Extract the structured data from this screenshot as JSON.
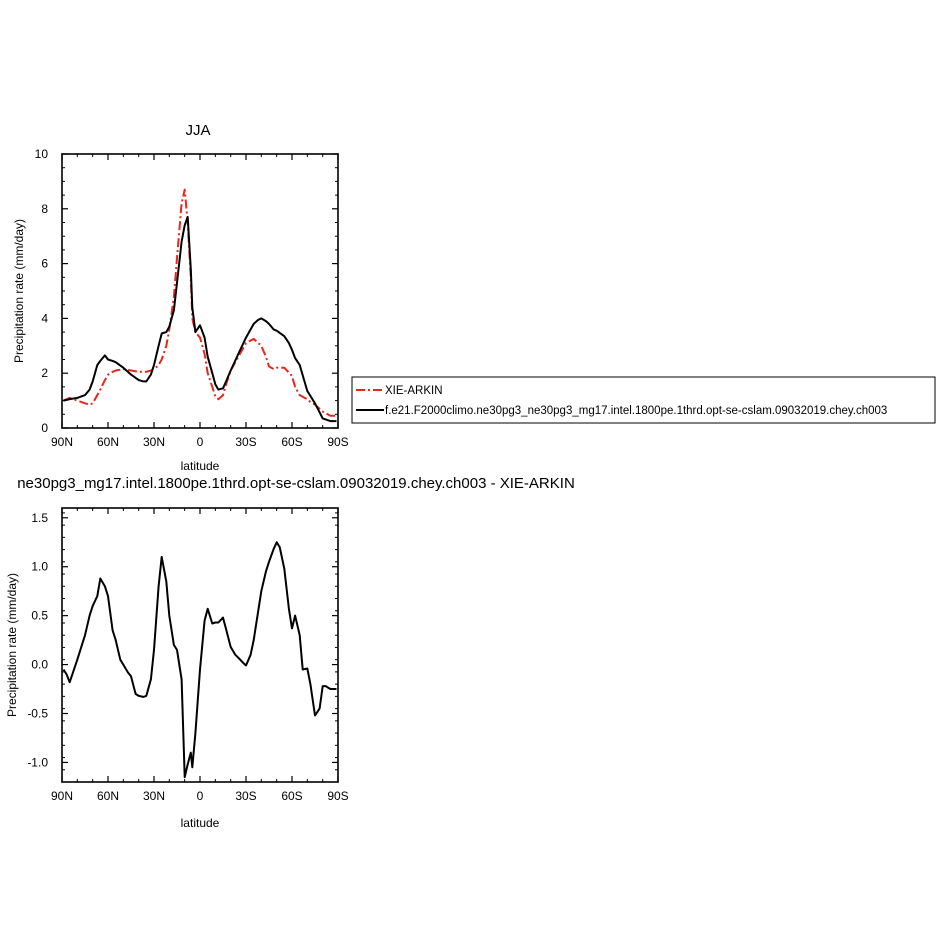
{
  "chart_data": [
    {
      "type": "line",
      "title": "JJA",
      "xlabel": "latitude",
      "ylabel": "Precipitation rate (mm/day)",
      "xlim": [
        90,
        -90
      ],
      "ylim": [
        0,
        10
      ],
      "x_ticks": [
        90,
        60,
        30,
        0,
        -30,
        -60,
        -90
      ],
      "x_tick_labels": [
        "90N",
        "60N",
        "30N",
        "0",
        "30S",
        "60S",
        "90S"
      ],
      "y_ticks": [
        0,
        2,
        4,
        6,
        8,
        10
      ],
      "y_tick_labels": [
        "0",
        "2",
        "4",
        "6",
        "8",
        "10"
      ],
      "legend_position": "right",
      "series": [
        {
          "name": "XIE-ARKIN",
          "color": "#e8271b",
          "dash": "dash-dot",
          "x": [
            89,
            85,
            80,
            75,
            72,
            70,
            65,
            62,
            60,
            57,
            55,
            50,
            45,
            40,
            35,
            32,
            30,
            27,
            25,
            22,
            20,
            17,
            15,
            12,
            10,
            8,
            6,
            5,
            3,
            0,
            -3,
            -5,
            -8,
            -10,
            -12,
            -15,
            -17,
            -20,
            -25,
            -30,
            -35,
            -40,
            -43,
            -45,
            -48,
            -50,
            -55,
            -60,
            -62,
            -65,
            -70,
            -72,
            -75,
            -80,
            -85,
            -89
          ],
          "y": [
            1.0,
            1.1,
            1.0,
            0.9,
            0.85,
            0.9,
            1.4,
            1.75,
            1.95,
            2.05,
            2.1,
            2.15,
            2.1,
            2.05,
            2.05,
            2.1,
            2.15,
            2.3,
            2.5,
            3.0,
            3.6,
            4.8,
            6.2,
            8.2,
            8.7,
            7.5,
            5.5,
            4.0,
            3.5,
            3.3,
            2.7,
            2.0,
            1.5,
            1.15,
            1.05,
            1.2,
            1.6,
            2.1,
            2.6,
            3.1,
            3.25,
            3.0,
            2.6,
            2.25,
            2.15,
            2.2,
            2.2,
            1.9,
            1.5,
            1.2,
            1.05,
            0.95,
            0.85,
            0.6,
            0.45,
            0.45
          ]
        },
        {
          "name": "f.e21.F2000climo.ne30pg3_ne30pg3_mg17.intel.1800pe.1thrd.opt-se-cslam.09032019.chey.ch003",
          "color": "#000000",
          "dash": "solid",
          "x": [
            89,
            85,
            80,
            75,
            72,
            70,
            67,
            65,
            62,
            60,
            57,
            55,
            50,
            45,
            40,
            37,
            35,
            32,
            30,
            27,
            25,
            22,
            20,
            17,
            15,
            12,
            10,
            8,
            6,
            5,
            3,
            0,
            -3,
            -5,
            -8,
            -10,
            -12,
            -15,
            -17,
            -20,
            -25,
            -30,
            -35,
            -38,
            -40,
            -43,
            -45,
            -48,
            -50,
            -55,
            -58,
            -60,
            -62,
            -65,
            -70,
            -75,
            -80,
            -85,
            -89
          ],
          "y": [
            1.0,
            1.05,
            1.1,
            1.2,
            1.4,
            1.7,
            2.3,
            2.45,
            2.65,
            2.5,
            2.45,
            2.4,
            2.2,
            1.95,
            1.75,
            1.7,
            1.7,
            1.95,
            2.3,
            3.0,
            3.45,
            3.5,
            3.7,
            4.3,
            5.3,
            6.8,
            7.4,
            7.7,
            5.8,
            4.4,
            3.5,
            3.75,
            3.3,
            2.6,
            2.0,
            1.6,
            1.4,
            1.45,
            1.7,
            2.1,
            2.7,
            3.3,
            3.8,
            3.95,
            4.0,
            3.9,
            3.8,
            3.6,
            3.55,
            3.35,
            3.1,
            2.85,
            2.55,
            2.3,
            1.35,
            0.9,
            0.35,
            0.25,
            0.25
          ]
        }
      ]
    },
    {
      "type": "line",
      "title": "ne30pg3_mg17.intel.1800pe.1thrd.opt-se-cslam.09032019.chey.ch003 - XIE-ARKIN",
      "xlabel": "latitude",
      "ylabel": "Precipitation rate (mm/day)",
      "xlim": [
        90,
        -90
      ],
      "ylim": [
        -1.2,
        1.6
      ],
      "x_ticks": [
        90,
        60,
        30,
        0,
        -30,
        -60,
        -90
      ],
      "x_tick_labels": [
        "90N",
        "60N",
        "30N",
        "0",
        "30S",
        "60S",
        "90S"
      ],
      "y_ticks": [
        -1.0,
        -0.5,
        0.0,
        0.5,
        1.0,
        1.5
      ],
      "y_tick_labels": [
        "-1.0",
        "-0.5",
        "0.0",
        "0.5",
        "1.0",
        "1.5"
      ],
      "series": [
        {
          "name": "",
          "color": "#000000",
          "dash": "solid",
          "x": [
            89,
            87,
            85,
            80,
            75,
            72,
            70,
            67,
            65,
            62,
            60,
            57,
            55,
            52,
            50,
            47,
            45,
            42,
            40,
            37,
            35,
            32,
            30,
            27,
            25,
            22,
            20,
            17,
            15,
            12,
            10,
            8,
            6,
            5,
            3,
            0,
            -3,
            -5,
            -8,
            -10,
            -12,
            -15,
            -17,
            -20,
            -23,
            -25,
            -28,
            -30,
            -33,
            -35,
            -40,
            -43,
            -45,
            -48,
            -50,
            -52,
            -55,
            -58,
            -60,
            -62,
            -65,
            -67,
            -70,
            -72,
            -75,
            -78,
            -80,
            -82,
            -85,
            -89
          ],
          "y": [
            -0.05,
            -0.1,
            -0.18,
            0.05,
            0.3,
            0.5,
            0.6,
            0.7,
            0.88,
            0.8,
            0.7,
            0.35,
            0.25,
            0.05,
            0.0,
            -0.08,
            -0.12,
            -0.3,
            -0.32,
            -0.33,
            -0.32,
            -0.15,
            0.15,
            0.8,
            1.1,
            0.85,
            0.5,
            0.2,
            0.15,
            -0.15,
            -1.15,
            -1.02,
            -0.9,
            -1.05,
            -0.7,
            -0.05,
            0.45,
            0.57,
            0.42,
            0.43,
            0.43,
            0.48,
            0.36,
            0.18,
            0.1,
            0.07,
            0.02,
            -0.01,
            0.1,
            0.25,
            0.75,
            0.95,
            1.05,
            1.18,
            1.25,
            1.2,
            0.98,
            0.57,
            0.37,
            0.5,
            0.3,
            -0.05,
            -0.04,
            -0.2,
            -0.52,
            -0.45,
            -0.22,
            -0.22,
            -0.25,
            -0.25
          ]
        }
      ]
    }
  ]
}
